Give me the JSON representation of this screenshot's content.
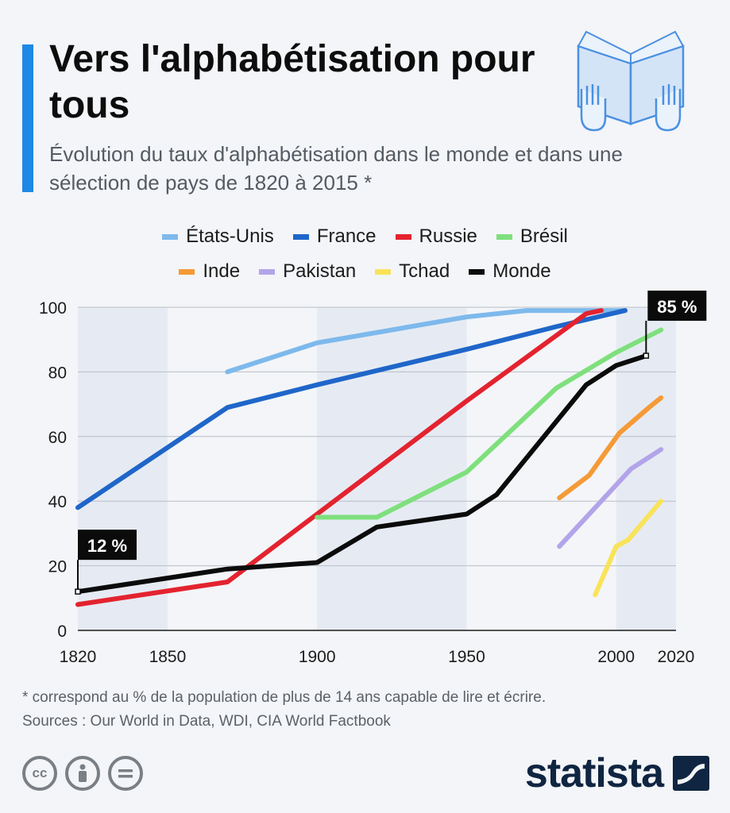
{
  "header": {
    "title": "Vers l'alphabétisation pour tous",
    "subtitle": "Évolution du taux d'alphabétisation dans le monde et dans une sélection de pays de 1820 à 2015 *",
    "accent_color": "#1e88e5",
    "illustration_icon": "open-book-hands-icon"
  },
  "legend": {
    "rows": [
      [
        {
          "label": "États-Unis",
          "color": "#7db9ec"
        },
        {
          "label": "France",
          "color": "#1f66c9"
        },
        {
          "label": "Russie",
          "color": "#e3232f"
        },
        {
          "label": "Brésil",
          "color": "#7ee07c"
        }
      ],
      [
        {
          "label": "Inde",
          "color": "#f59a37"
        },
        {
          "label": "Pakistan",
          "color": "#b3a4ea"
        },
        {
          "label": "Tchad",
          "color": "#f9e35a"
        },
        {
          "label": "Monde",
          "color": "#0b0b0b"
        }
      ]
    ]
  },
  "chart_data": {
    "type": "line",
    "title": "",
    "xlabel": "",
    "ylabel": "",
    "xlim": [
      1820,
      2020
    ],
    "ylim": [
      0,
      100
    ],
    "x_ticks": [
      "1820",
      "1850",
      "1900",
      "1950",
      "2000",
      "2020"
    ],
    "y_ticks": [
      "0",
      "20",
      "40",
      "60",
      "80",
      "100"
    ],
    "grid": true,
    "legend_position": "top",
    "shaded_bands": [
      [
        1820,
        1850
      ],
      [
        1900,
        1950
      ],
      [
        2000,
        2020
      ]
    ],
    "series": [
      {
        "name": "États-Unis",
        "color": "#7db9ec",
        "points": [
          [
            1870,
            80
          ],
          [
            1900,
            89
          ],
          [
            1950,
            97
          ],
          [
            1970,
            99
          ],
          [
            2003,
            99
          ]
        ]
      },
      {
        "name": "France",
        "color": "#1f66c9",
        "points": [
          [
            1820,
            38
          ],
          [
            1870,
            69
          ],
          [
            1900,
            76
          ],
          [
            1950,
            87
          ],
          [
            1980,
            94
          ],
          [
            2003,
            99
          ]
        ]
      },
      {
        "name": "Russie",
        "color": "#e3232f",
        "points": [
          [
            1820,
            8
          ],
          [
            1870,
            15
          ],
          [
            1900,
            36
          ],
          [
            1950,
            71
          ],
          [
            1990,
            98
          ],
          [
            1995,
            99
          ]
        ]
      },
      {
        "name": "Brésil",
        "color": "#7ee07c",
        "points": [
          [
            1900,
            35
          ],
          [
            1920,
            35
          ],
          [
            1950,
            49
          ],
          [
            1980,
            75
          ],
          [
            2000,
            86
          ],
          [
            2015,
            93
          ]
        ]
      },
      {
        "name": "Inde",
        "color": "#f59a37",
        "points": [
          [
            1981,
            41
          ],
          [
            1991,
            48
          ],
          [
            2001,
            61
          ],
          [
            2011,
            69
          ],
          [
            2015,
            72
          ]
        ]
      },
      {
        "name": "Pakistan",
        "color": "#b3a4ea",
        "points": [
          [
            1981,
            26
          ],
          [
            2005,
            50
          ],
          [
            2015,
            56
          ]
        ]
      },
      {
        "name": "Tchad",
        "color": "#f9e35a",
        "points": [
          [
            1993,
            11
          ],
          [
            2000,
            26
          ],
          [
            2004,
            28
          ],
          [
            2015,
            40
          ]
        ]
      },
      {
        "name": "Monde",
        "color": "#0b0b0b",
        "points": [
          [
            1820,
            12
          ],
          [
            1870,
            19
          ],
          [
            1900,
            21
          ],
          [
            1920,
            32
          ],
          [
            1950,
            36
          ],
          [
            1960,
            42
          ],
          [
            1990,
            76
          ],
          [
            2000,
            82
          ],
          [
            2010,
            85
          ]
        ]
      }
    ],
    "annotations": [
      {
        "label": "12 %",
        "x": 1820,
        "y": 12
      },
      {
        "label": "85 %",
        "x": 2010,
        "y": 85
      }
    ]
  },
  "footer": {
    "footnote": "* correspond au % de la population de plus de 14 ans capable de lire et écrire.",
    "sources": "Sources : Our World in Data, WDI, CIA World Factbook",
    "license_icons": [
      "cc-icon",
      "by-person-icon",
      "nd-equals-icon"
    ],
    "brand": "statista",
    "brand_icon": "statista-logo-icon"
  }
}
